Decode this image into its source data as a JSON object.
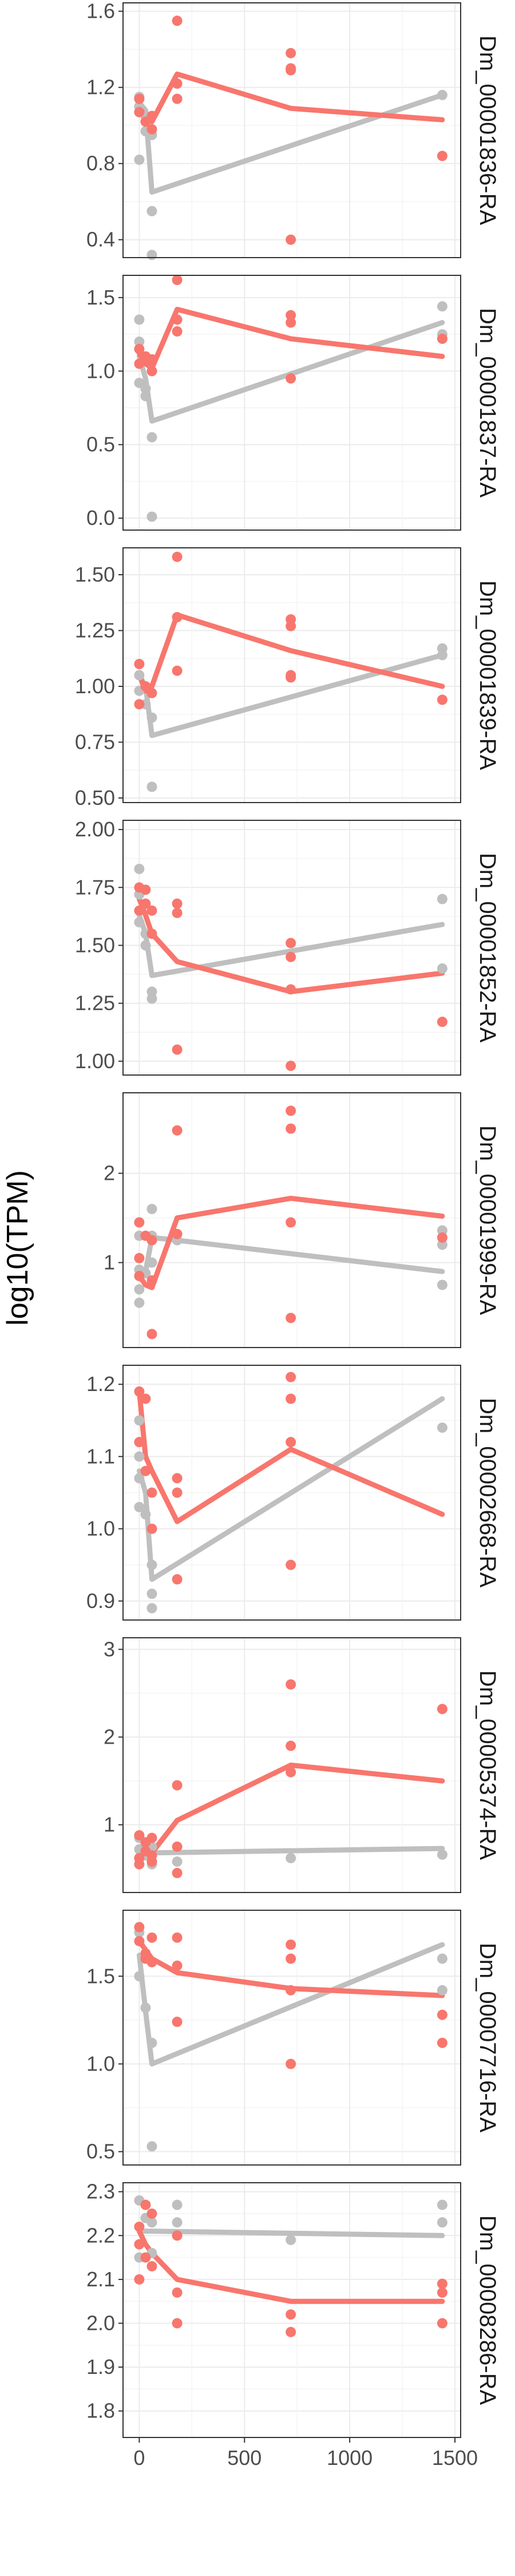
{
  "chart_data": {
    "type": "scatter",
    "ylabel": "log10(TPM)",
    "xlabel": "",
    "x_ticks": [
      0,
      500,
      1000,
      1500
    ],
    "xlim": [
      -50,
      1500
    ],
    "grid": true,
    "colors": {
      "grey": "#bfbfbf",
      "red": "#f8766d",
      "panel_border": "#333333",
      "grid": "#ebebeb"
    },
    "panels": [
      {
        "label": "Dm_00001836-RA",
        "ylim": [
          0.33,
          1.62
        ],
        "yticks": [
          "0.4",
          "0.8",
          "1.2",
          "1.6"
        ],
        "grey_line": {
          "x": [
            0,
            30,
            60,
            1440
          ],
          "y": [
            1.12,
            1.08,
            0.65,
            1.16
          ]
        },
        "red_line": {
          "x": [
            0,
            30,
            60,
            180,
            720,
            1440
          ],
          "y": [
            1.1,
            1.04,
            1.02,
            1.27,
            1.09,
            1.03
          ]
        },
        "grey_points": [
          [
            0,
            1.15
          ],
          [
            0,
            1.1
          ],
          [
            0,
            0.82
          ],
          [
            30,
            1.05
          ],
          [
            30,
            0.97
          ],
          [
            60,
            0.95
          ],
          [
            60,
            0.55
          ],
          [
            60,
            0.32
          ],
          [
            1440,
            1.16
          ]
        ],
        "red_points": [
          [
            0,
            1.14
          ],
          [
            0,
            1.07
          ],
          [
            30,
            1.02
          ],
          [
            60,
            1.05
          ],
          [
            60,
            0.98
          ],
          [
            180,
            1.55
          ],
          [
            180,
            1.22
          ],
          [
            180,
            1.14
          ],
          [
            720,
            1.38
          ],
          [
            720,
            1.3
          ],
          [
            720,
            1.29
          ],
          [
            720,
            0.4
          ],
          [
            1440,
            0.84
          ]
        ]
      },
      {
        "label": "Dm_00001837-RA",
        "ylim": [
          -0.05,
          1.62
        ],
        "yticks": [
          "0.0",
          "0.5",
          "1.0",
          "1.5"
        ],
        "grey_line": {
          "x": [
            0,
            30,
            60,
            1440
          ],
          "y": [
            1.1,
            0.95,
            0.66,
            1.33
          ]
        },
        "red_line": {
          "x": [
            0,
            30,
            60,
            180,
            720,
            1440
          ],
          "y": [
            1.12,
            1.05,
            1.02,
            1.42,
            1.22,
            1.1
          ]
        },
        "grey_points": [
          [
            0,
            1.35
          ],
          [
            0,
            1.2
          ],
          [
            0,
            0.92
          ],
          [
            30,
            0.88
          ],
          [
            30,
            0.83
          ],
          [
            60,
            1.0
          ],
          [
            60,
            0.55
          ],
          [
            60,
            0.01
          ],
          [
            1440,
            1.44
          ],
          [
            1440,
            1.25
          ]
        ],
        "red_points": [
          [
            0,
            1.15
          ],
          [
            0,
            1.05
          ],
          [
            30,
            1.1
          ],
          [
            60,
            1.08
          ],
          [
            60,
            1.0
          ],
          [
            180,
            1.62
          ],
          [
            180,
            1.35
          ],
          [
            180,
            1.27
          ],
          [
            720,
            1.38
          ],
          [
            720,
            1.33
          ],
          [
            720,
            0.95
          ],
          [
            1440,
            1.22
          ]
        ]
      },
      {
        "label": "Dm_00001839-RA",
        "ylim": [
          0.5,
          1.6
        ],
        "yticks": [
          "0.50",
          "0.75",
          "1.00",
          "1.25",
          "1.50"
        ],
        "grey_line": {
          "x": [
            0,
            30,
            60,
            1440
          ],
          "y": [
            1.05,
            1.0,
            0.78,
            1.14
          ]
        },
        "red_line": {
          "x": [
            0,
            30,
            60,
            180,
            720,
            1440
          ],
          "y": [
            1.05,
            0.98,
            1.0,
            1.32,
            1.16,
            1.0
          ]
        },
        "grey_points": [
          [
            0,
            1.05
          ],
          [
            0,
            0.98
          ],
          [
            30,
            0.92
          ],
          [
            60,
            0.86
          ],
          [
            60,
            0.55
          ],
          [
            1440,
            1.17
          ],
          [
            1440,
            1.14
          ]
        ],
        "red_points": [
          [
            0,
            1.1
          ],
          [
            0,
            0.92
          ],
          [
            30,
            1.0
          ],
          [
            60,
            0.97
          ],
          [
            180,
            1.58
          ],
          [
            180,
            1.31
          ],
          [
            180,
            1.07
          ],
          [
            720,
            1.3
          ],
          [
            720,
            1.27
          ],
          [
            720,
            1.05
          ],
          [
            720,
            1.04
          ],
          [
            1440,
            0.94
          ]
        ]
      },
      {
        "label": "Dm_00001852-RA",
        "ylim": [
          0.96,
          2.02
        ],
        "yticks": [
          "1.00",
          "1.25",
          "1.50",
          "1.75",
          "2.00"
        ],
        "grey_line": {
          "x": [
            0,
            30,
            60,
            1440
          ],
          "y": [
            1.63,
            1.55,
            1.37,
            1.59
          ]
        },
        "red_line": {
          "x": [
            0,
            30,
            60,
            180,
            720,
            1440
          ],
          "y": [
            1.7,
            1.63,
            1.55,
            1.43,
            1.3,
            1.38
          ]
        },
        "grey_points": [
          [
            0,
            1.83
          ],
          [
            0,
            1.72
          ],
          [
            0,
            1.6
          ],
          [
            30,
            1.55
          ],
          [
            30,
            1.5
          ],
          [
            60,
            1.3
          ],
          [
            60,
            1.27
          ],
          [
            1440,
            1.7
          ],
          [
            1440,
            1.4
          ]
        ],
        "red_points": [
          [
            0,
            1.75
          ],
          [
            0,
            1.65
          ],
          [
            30,
            1.74
          ],
          [
            30,
            1.68
          ],
          [
            60,
            1.65
          ],
          [
            60,
            1.55
          ],
          [
            180,
            1.68
          ],
          [
            180,
            1.64
          ],
          [
            180,
            1.05
          ],
          [
            720,
            1.51
          ],
          [
            720,
            1.45
          ],
          [
            720,
            1.31
          ],
          [
            720,
            0.98
          ],
          [
            1440,
            1.17
          ]
        ]
      },
      {
        "label": "Dm_00001999-RA",
        "ylim": [
          0.1,
          2.85
        ],
        "yticks": [
          "1",
          "2"
        ],
        "grey_line": {
          "x": [
            0,
            30,
            60,
            180,
            1440
          ],
          "y": [
            0.95,
            0.9,
            1.28,
            1.25,
            0.9
          ]
        },
        "red_line": {
          "x": [
            0,
            30,
            60,
            180,
            720,
            1440
          ],
          "y": [
            0.85,
            0.75,
            0.72,
            1.5,
            1.72,
            1.52
          ]
        },
        "grey_points": [
          [
            0,
            1.3
          ],
          [
            0,
            0.92
          ],
          [
            0,
            0.7
          ],
          [
            0,
            0.55
          ],
          [
            30,
            0.88
          ],
          [
            60,
            1.6
          ],
          [
            60,
            1.3
          ],
          [
            60,
            1.0
          ],
          [
            180,
            1.25
          ],
          [
            1440,
            1.36
          ],
          [
            1440,
            1.2
          ],
          [
            1440,
            0.75
          ]
        ],
        "red_points": [
          [
            0,
            1.45
          ],
          [
            0,
            1.05
          ],
          [
            0,
            0.85
          ],
          [
            30,
            1.3
          ],
          [
            60,
            1.25
          ],
          [
            60,
            0.8
          ],
          [
            60,
            0.2
          ],
          [
            180,
            2.48
          ],
          [
            180,
            1.32
          ],
          [
            720,
            2.7
          ],
          [
            720,
            2.5
          ],
          [
            720,
            1.45
          ],
          [
            720,
            0.38
          ],
          [
            1440,
            1.28
          ]
        ]
      },
      {
        "label": "Dm_00002668-RA",
        "ylim": [
          0.88,
          1.22
        ],
        "yticks": [
          "0.9",
          "1.0",
          "1.1",
          "1.2"
        ],
        "grey_line": {
          "x": [
            0,
            30,
            60,
            1440
          ],
          "y": [
            1.08,
            1.05,
            0.93,
            1.18
          ]
        },
        "red_line": {
          "x": [
            0,
            30,
            60,
            180,
            720,
            1440
          ],
          "y": [
            1.19,
            1.1,
            1.08,
            1.01,
            1.11,
            1.02
          ]
        },
        "grey_points": [
          [
            0,
            1.15
          ],
          [
            0,
            1.1
          ],
          [
            0,
            1.07
          ],
          [
            0,
            1.03
          ],
          [
            30,
            1.02
          ],
          [
            60,
            0.95
          ],
          [
            60,
            0.91
          ],
          [
            60,
            0.89
          ],
          [
            1440,
            1.14
          ]
        ],
        "red_points": [
          [
            0,
            1.19
          ],
          [
            0,
            1.12
          ],
          [
            30,
            1.18
          ],
          [
            30,
            1.08
          ],
          [
            60,
            1.05
          ],
          [
            60,
            1.0
          ],
          [
            180,
            1.07
          ],
          [
            180,
            1.05
          ],
          [
            180,
            0.93
          ],
          [
            720,
            1.21
          ],
          [
            720,
            1.18
          ],
          [
            720,
            1.12
          ],
          [
            720,
            0.95
          ]
        ]
      },
      {
        "label": "Dm_00005374-RA",
        "ylim": [
          0.28,
          3.08
        ],
        "yticks": [
          "1",
          "2",
          "3"
        ],
        "grey_line": {
          "x": [
            0,
            30,
            60,
            1440
          ],
          "y": [
            0.72,
            0.7,
            0.68,
            0.73
          ]
        },
        "red_line": {
          "x": [
            0,
            30,
            60,
            180,
            720,
            1440
          ],
          "y": [
            0.72,
            0.7,
            0.68,
            1.05,
            1.68,
            1.5
          ]
        },
        "grey_points": [
          [
            0,
            0.85
          ],
          [
            0,
            0.72
          ],
          [
            0,
            0.62
          ],
          [
            30,
            0.65
          ],
          [
            60,
            0.75
          ],
          [
            60,
            0.55
          ],
          [
            180,
            0.58
          ],
          [
            720,
            0.62
          ],
          [
            1440,
            0.66
          ]
        ],
        "red_points": [
          [
            0,
            0.88
          ],
          [
            0,
            0.62
          ],
          [
            0,
            0.55
          ],
          [
            30,
            0.8
          ],
          [
            30,
            0.7
          ],
          [
            60,
            0.85
          ],
          [
            60,
            0.65
          ],
          [
            60,
            0.58
          ],
          [
            180,
            1.45
          ],
          [
            180,
            0.75
          ],
          [
            180,
            0.45
          ],
          [
            720,
            2.6
          ],
          [
            720,
            1.9
          ],
          [
            720,
            1.6
          ],
          [
            1440,
            2.32
          ]
        ]
      },
      {
        "label": "Dm_00007716-RA",
        "ylim": [
          0.45,
          1.85
        ],
        "yticks": [
          "0.5",
          "1.0",
          "1.5"
        ],
        "grey_line": {
          "x": [
            0,
            30,
            60,
            1440
          ],
          "y": [
            1.62,
            1.3,
            1.0,
            1.68
          ]
        },
        "red_line": {
          "x": [
            0,
            30,
            60,
            180,
            720,
            1440
          ],
          "y": [
            1.7,
            1.65,
            1.6,
            1.52,
            1.43,
            1.39
          ]
        },
        "grey_points": [
          [
            0,
            1.75
          ],
          [
            0,
            1.5
          ],
          [
            30,
            1.32
          ],
          [
            60,
            1.12
          ],
          [
            60,
            0.53
          ],
          [
            1440,
            1.6
          ],
          [
            1440,
            1.42
          ]
        ],
        "red_points": [
          [
            0,
            1.78
          ],
          [
            0,
            1.7
          ],
          [
            30,
            1.63
          ],
          [
            30,
            1.6
          ],
          [
            60,
            1.72
          ],
          [
            60,
            1.58
          ],
          [
            180,
            1.72
          ],
          [
            180,
            1.56
          ],
          [
            180,
            1.24
          ],
          [
            720,
            1.68
          ],
          [
            720,
            1.6
          ],
          [
            720,
            1.42
          ],
          [
            720,
            1.0
          ],
          [
            1440,
            1.28
          ],
          [
            1440,
            1.12
          ]
        ]
      },
      {
        "label": "Dm_00008286-RA",
        "ylim": [
          1.75,
          2.31
        ],
        "yticks": [
          "1.8",
          "1.9",
          "2.0",
          "2.1",
          "2.2",
          "2.3"
        ],
        "grey_line": {
          "x": [
            0,
            30,
            60,
            1440
          ],
          "y": [
            2.21,
            2.21,
            2.21,
            2.2
          ]
        },
        "red_line": {
          "x": [
            0,
            30,
            60,
            180,
            720,
            1440
          ],
          "y": [
            2.21,
            2.18,
            2.16,
            2.1,
            2.05,
            2.05
          ]
        },
        "grey_points": [
          [
            0,
            2.28
          ],
          [
            0,
            2.22
          ],
          [
            0,
            2.15
          ],
          [
            30,
            2.24
          ],
          [
            60,
            2.23
          ],
          [
            60,
            2.16
          ],
          [
            180,
            2.27
          ],
          [
            180,
            2.23
          ],
          [
            720,
            2.19
          ],
          [
            1440,
            2.27
          ],
          [
            1440,
            2.23
          ]
        ],
        "red_points": [
          [
            0,
            2.22
          ],
          [
            0,
            2.18
          ],
          [
            0,
            2.1
          ],
          [
            30,
            2.27
          ],
          [
            30,
            2.15
          ],
          [
            60,
            2.25
          ],
          [
            60,
            2.13
          ],
          [
            180,
            2.2
          ],
          [
            180,
            2.07
          ],
          [
            180,
            2.0
          ],
          [
            720,
            2.02
          ],
          [
            720,
            1.98
          ],
          [
            1440,
            2.09
          ],
          [
            1440,
            2.07
          ],
          [
            1440,
            2.0
          ]
        ]
      }
    ]
  }
}
